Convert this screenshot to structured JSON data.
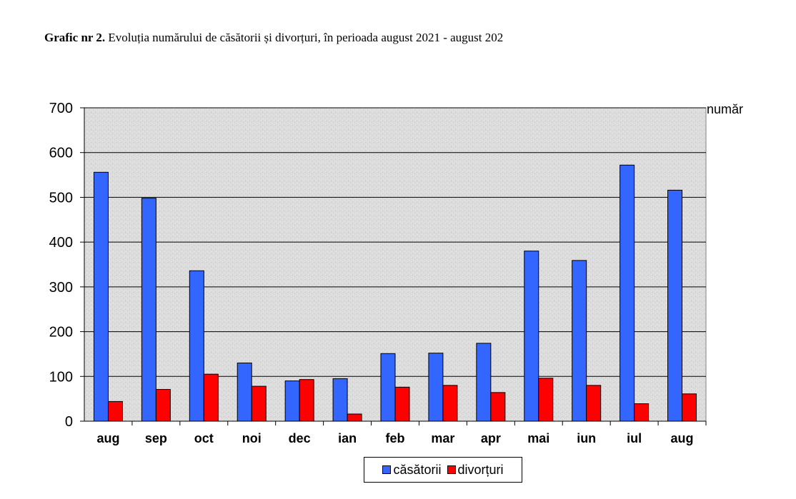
{
  "caption": {
    "bold": "Grafic nr 2.",
    "text": " Evoluția numărului de căsătorii și divorțuri, în perioada august 2021 - august 202"
  },
  "colors": {
    "casatorii": "#3366ff",
    "divorturi": "#ff0000",
    "plot_bg": "#d9d9d9"
  },
  "chart_data": {
    "type": "bar",
    "title": "Evoluția numărului de căsătorii și divorțuri, în perioada august 2021 - august 202",
    "ylabel": "număr",
    "xlabel": "",
    "ylim": [
      0,
      700
    ],
    "yticks": [
      0,
      100,
      200,
      300,
      400,
      500,
      600,
      700
    ],
    "grid": true,
    "legend_position": "bottom",
    "categories": [
      "aug",
      "sep",
      "oct",
      "noi",
      "dec",
      "ian",
      "feb",
      "mar",
      "apr",
      "mai",
      "iun",
      "iul",
      "aug"
    ],
    "series": [
      {
        "name": "căsătorii",
        "color": "#3366ff",
        "values": [
          556,
          498,
          336,
          130,
          90,
          95,
          151,
          152,
          174,
          380,
          359,
          572,
          516
        ]
      },
      {
        "name": "divorțuri",
        "color": "#ff0000",
        "values": [
          44,
          71,
          105,
          78,
          93,
          16,
          76,
          80,
          64,
          96,
          80,
          39,
          61
        ]
      }
    ]
  }
}
